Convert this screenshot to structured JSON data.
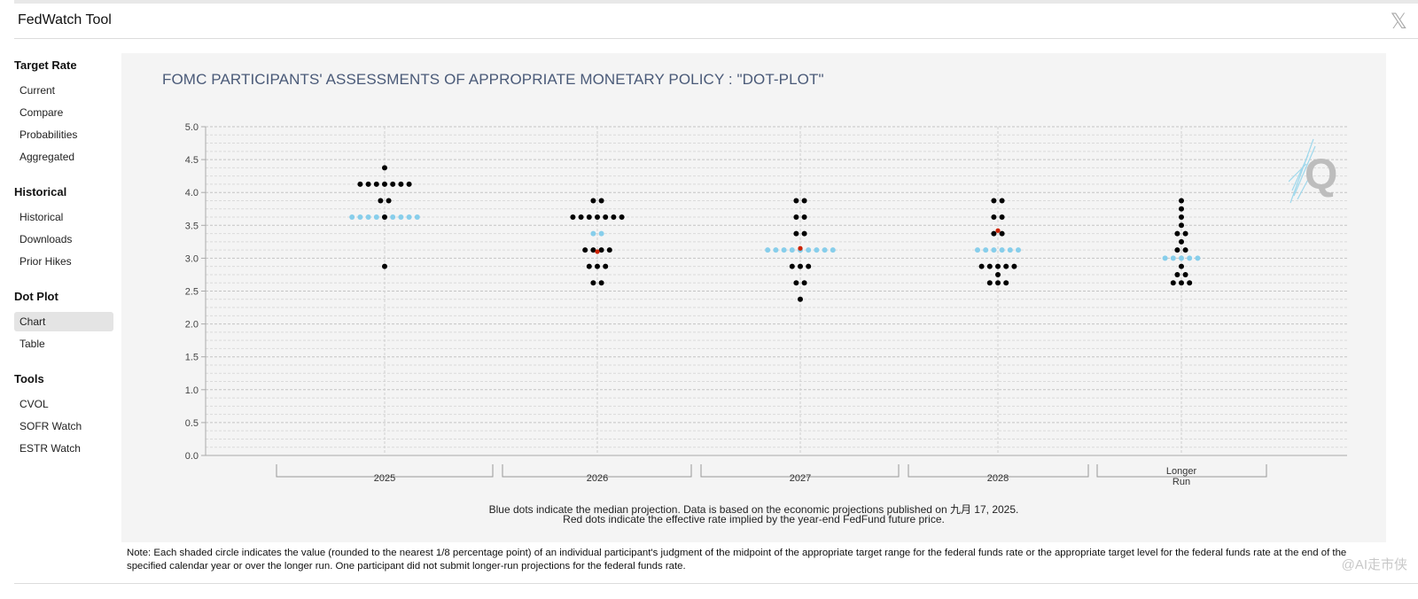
{
  "header": {
    "title": "FedWatch Tool",
    "close_label": "𝕏"
  },
  "sidebar": {
    "sections": [
      {
        "label": "Target Rate",
        "items": [
          "Current",
          "Compare",
          "Probabilities",
          "Aggregated"
        ]
      },
      {
        "label": "Historical",
        "items": [
          "Historical",
          "Downloads",
          "Prior Hikes"
        ]
      },
      {
        "label": "Dot Plot",
        "items": [
          "Chart",
          "Table"
        ],
        "active": "Chart"
      },
      {
        "label": "Tools",
        "items": [
          "CVOL",
          "SOFR Watch",
          "ESTR Watch"
        ]
      }
    ]
  },
  "chart_data": {
    "type": "scatter",
    "title": "FOMC PARTICIPANTS' ASSESSMENTS OF APPROPRIATE MONETARY POLICY : \"DOT-PLOT\"",
    "ylim": [
      0,
      5
    ],
    "yticks": [
      "0.0",
      "0.5",
      "1.0",
      "1.5",
      "2.0",
      "2.5",
      "3.0",
      "3.5",
      "4.0",
      "4.5",
      "5.0"
    ],
    "categories": [
      "2025",
      "2026",
      "2027",
      "2028",
      "Longer Run"
    ],
    "colors": {
      "participant": "#000000",
      "median": "#87ceeb",
      "effective": "#cc2200",
      "grid": "#cccccc"
    },
    "dots": [
      [
        {
          "rate": 4.375,
          "count": 1
        },
        {
          "rate": 4.125,
          "count": 7
        },
        {
          "rate": 3.875,
          "count": 2
        },
        {
          "rate": 3.625,
          "count": 1
        },
        {
          "rate": 2.875,
          "count": 1
        }
      ],
      [
        {
          "rate": 3.875,
          "count": 2
        },
        {
          "rate": 3.625,
          "count": 7
        },
        {
          "rate": 3.125,
          "count": 4
        },
        {
          "rate": 2.875,
          "count": 3
        },
        {
          "rate": 2.625,
          "count": 2
        }
      ],
      [
        {
          "rate": 3.875,
          "count": 2
        },
        {
          "rate": 3.625,
          "count": 2
        },
        {
          "rate": 3.375,
          "count": 2
        },
        {
          "rate": 2.875,
          "count": 3
        },
        {
          "rate": 2.625,
          "count": 2
        },
        {
          "rate": 2.375,
          "count": 1
        }
      ],
      [
        {
          "rate": 3.875,
          "count": 2
        },
        {
          "rate": 3.625,
          "count": 2
        },
        {
          "rate": 3.375,
          "count": 2
        },
        {
          "rate": 2.875,
          "count": 5
        },
        {
          "rate": 2.75,
          "count": 1
        },
        {
          "rate": 2.625,
          "count": 3
        }
      ],
      [
        {
          "rate": 3.875,
          "count": 1
        },
        {
          "rate": 3.75,
          "count": 1
        },
        {
          "rate": 3.625,
          "count": 1
        },
        {
          "rate": 3.5,
          "count": 1
        },
        {
          "rate": 3.375,
          "count": 2
        },
        {
          "rate": 3.25,
          "count": 1
        },
        {
          "rate": 3.125,
          "count": 2
        },
        {
          "rate": 2.875,
          "count": 1
        },
        {
          "rate": 2.75,
          "count": 2
        },
        {
          "rate": 2.625,
          "count": 3
        }
      ]
    ],
    "medians": [
      {
        "rate": 3.625,
        "count": 9
      },
      {
        "rate": 3.375,
        "count": 2
      },
      {
        "rate": 3.125,
        "count": 9
      },
      {
        "rate": 3.125,
        "count": 6
      },
      {
        "rate": 3.0,
        "count": 5
      }
    ],
    "effective_rates": [
      null,
      3.1,
      3.15,
      3.42,
      null
    ],
    "caption_line1": "Blue dots indicate the median projection. Data is based on the economic projections published on 九月 17, 2025.",
    "caption_line2": "Red dots indicate the effective rate implied by the year-end FedFund future price."
  },
  "note": "Note: Each shaded circle indicates the value (rounded to the nearest 1/8 percentage point) of an individual participant's judgment of the midpoint of the appropriate target range for the federal funds rate or the appropriate target level for the federal funds rate at the end of the specified calendar year or over the longer run. One participant did not submit longer-run projections for the federal funds rate.",
  "watermark": "@AI走市侠"
}
